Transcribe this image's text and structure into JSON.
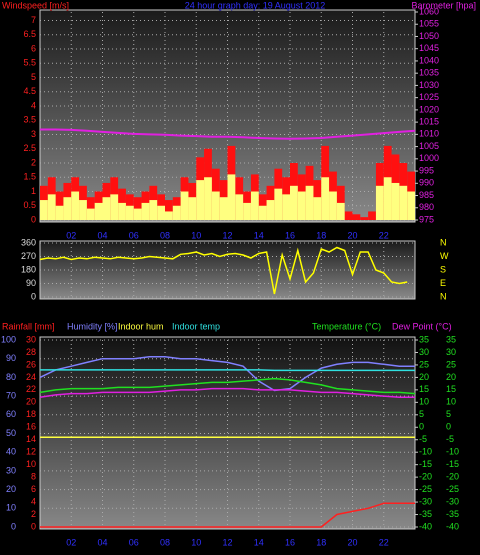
{
  "chart_data": [
    {
      "type": "bar",
      "title": "24 hour graph day: 19 August 2012",
      "ylabel": "Windspeed [m/s]",
      "y2label": "Barometer [hpa]",
      "xlim": [
        0,
        24
      ],
      "ylim": [
        0,
        7.3
      ],
      "y2lim": [
        975,
        1060
      ],
      "grid": true,
      "x": [
        0,
        0.5,
        1,
        1.5,
        2,
        2.5,
        3,
        3.5,
        4,
        4.5,
        5,
        5.5,
        6,
        6.5,
        7,
        7.5,
        8,
        8.5,
        9,
        9.5,
        10,
        10.5,
        11,
        11.5,
        12,
        12.5,
        13,
        13.5,
        14,
        14.5,
        15,
        15.5,
        16,
        16.5,
        17,
        17.5,
        18,
        18.5,
        19,
        19.5,
        20,
        20.5,
        21,
        21.5,
        22,
        22.5,
        23,
        23.5
      ],
      "xticks": [
        {
          "value": 2,
          "label": "02"
        },
        {
          "value": 4,
          "label": "04"
        },
        {
          "value": 6,
          "label": "06"
        },
        {
          "value": 8,
          "label": "08"
        },
        10,
        12,
        14,
        16,
        18,
        20,
        22
      ],
      "yticks": [
        0,
        0.5,
        1,
        1.5,
        2,
        2.5,
        3,
        3.5,
        4,
        4.5,
        5,
        5.5,
        6,
        6.5,
        7
      ],
      "y2ticks": [
        975,
        980,
        985,
        990,
        995,
        1000,
        1005,
        1010,
        1015,
        1020,
        1025,
        1030,
        1035,
        1040,
        1045,
        1050,
        1055,
        1060
      ],
      "series": [
        {
          "color": "#ff1010",
          "values": [
            1.2,
            1.5,
            1.0,
            1.3,
            1.5,
            1.2,
            0.8,
            1.0,
            1.3,
            1.5,
            1.1,
            0.9,
            0.8,
            1.0,
            1.2,
            0.9,
            0.7,
            0.8,
            1.5,
            1.3,
            2.2,
            2.5,
            1.8,
            1.4,
            2.6,
            1.5,
            1.0,
            1.6,
            0.9,
            1.2,
            1.8,
            1.5,
            2.0,
            1.6,
            1.9,
            1.4,
            2.6,
            1.7,
            1.2,
            0.3,
            0.2,
            0.1,
            0.3,
            2.0,
            2.6,
            2.3,
            2.0,
            1.7
          ]
        },
        {
          "color": "#ffff80",
          "values": [
            0.7,
            0.9,
            0.5,
            0.8,
            1.0,
            0.7,
            0.4,
            0.6,
            0.8,
            0.9,
            0.6,
            0.5,
            0.4,
            0.6,
            0.7,
            0.5,
            0.3,
            0.5,
            1.0,
            0.8,
            1.4,
            1.5,
            1.0,
            0.8,
            1.6,
            0.9,
            0.6,
            1.0,
            0.5,
            0.7,
            1.1,
            0.9,
            1.2,
            1.0,
            1.2,
            0.8,
            1.5,
            1.0,
            0.6,
            0,
            0,
            0,
            0,
            1.2,
            1.5,
            1.3,
            1.2,
            1.0
          ]
        },
        {
          "type": "line",
          "axis": "y2",
          "color": "#e020e0",
          "x": [
            0,
            1,
            2,
            3,
            4,
            5,
            6,
            7,
            8,
            9,
            10,
            11,
            12,
            13,
            14,
            15,
            16,
            17,
            18,
            19,
            20,
            21,
            22,
            23,
            24
          ],
          "values": [
            1012,
            1012,
            1011.8,
            1011.5,
            1011,
            1010.6,
            1010.2,
            1010,
            1009.8,
            1009.5,
            1009.3,
            1009,
            1009,
            1008.8,
            1008.5,
            1008.3,
            1008.2,
            1008.3,
            1008.5,
            1009,
            1009.5,
            1010,
            1010.5,
            1011,
            1011.5
          ]
        }
      ]
    },
    {
      "type": "line",
      "xlim": [
        0,
        24
      ],
      "ylim": [
        0,
        360
      ],
      "grid": true,
      "yticks": [
        0,
        90,
        180,
        270,
        360
      ],
      "compass_labels": [
        "N",
        "W",
        "S",
        "E",
        "N"
      ],
      "x": [
        0,
        0.5,
        1,
        1.5,
        2,
        2.5,
        3,
        3.5,
        4,
        4.5,
        5,
        5.5,
        6,
        6.5,
        7,
        7.5,
        8,
        8.5,
        9,
        9.5,
        10,
        10.5,
        11,
        11.5,
        12,
        12.5,
        13,
        13.5,
        14,
        14.5,
        15,
        15.5,
        16,
        16.5,
        17,
        17.5,
        18,
        18.5,
        19,
        19.5,
        20,
        20.5,
        21,
        21.5,
        22,
        22.5,
        23,
        23.5
      ],
      "series": [
        {
          "color": "#ffff00",
          "values": [
            250,
            260,
            255,
            265,
            250,
            260,
            255,
            265,
            260,
            255,
            265,
            260,
            255,
            260,
            270,
            265,
            260,
            255,
            285,
            290,
            300,
            280,
            290,
            270,
            285,
            290,
            280,
            260,
            290,
            300,
            20,
            280,
            120,
            310,
            100,
            160,
            320,
            300,
            330,
            310,
            150,
            300,
            300,
            180,
            160,
            100,
            90,
            100
          ]
        }
      ]
    },
    {
      "type": "line",
      "xlim": [
        0,
        24
      ],
      "ylim": [
        0,
        100
      ],
      "rain_lim": [
        0,
        30
      ],
      "y2lim": [
        -40,
        35
      ],
      "grid": true,
      "x": [
        0,
        1,
        2,
        3,
        4,
        5,
        6,
        7,
        8,
        9,
        10,
        11,
        12,
        13,
        14,
        15,
        16,
        17,
        18,
        19,
        20,
        21,
        22,
        23,
        24
      ],
      "xticks": [
        {
          "value": 2,
          "label": "02"
        },
        {
          "value": 4,
          "label": "04"
        },
        {
          "value": 6,
          "label": "06"
        },
        {
          "value": 8,
          "label": "08"
        },
        10,
        12,
        14,
        16,
        18,
        20,
        22
      ],
      "yticks": [
        0,
        10,
        20,
        30,
        40,
        50,
        60,
        70,
        80,
        90,
        100
      ],
      "rain_ticks": [
        0,
        2,
        4,
        6,
        8,
        10,
        12,
        14,
        16,
        18,
        20,
        22,
        24,
        26,
        28,
        30
      ],
      "y2ticks": [
        -40,
        -35,
        -30,
        -25,
        -20,
        -15,
        -10,
        -5,
        0,
        5,
        10,
        15,
        20,
        25,
        30,
        35
      ],
      "dew_ticks": [
        -40,
        -35,
        -30,
        -25,
        -20,
        -15,
        -10,
        -5,
        0,
        5,
        10,
        15,
        20,
        25,
        30,
        35
      ],
      "series": [
        {
          "name": "Rainfall [mm]",
          "axis": "rain",
          "color": "#ff2020",
          "values": [
            0,
            0,
            0,
            0,
            0,
            0,
            0,
            0,
            0,
            0,
            0,
            0,
            0,
            0,
            0,
            0,
            0,
            0,
            0,
            2.0,
            2.5,
            3.0,
            3.8,
            3.8,
            3.8
          ]
        },
        {
          "name": "Humidity [%]",
          "color": "#8080ff",
          "values": [
            80,
            84,
            86,
            88,
            90,
            90,
            90,
            91,
            91,
            90,
            90,
            89,
            88,
            86,
            78,
            73,
            74,
            80,
            85,
            87,
            88,
            88,
            87,
            86,
            86
          ]
        },
        {
          "name": "Indoor hum",
          "color": "#ffff40",
          "values": [
            48,
            48,
            48,
            48,
            48,
            48,
            48,
            48,
            48,
            48,
            48,
            48,
            48,
            48,
            48,
            48,
            48,
            48,
            48,
            48,
            48,
            48,
            48,
            48,
            48
          ]
        },
        {
          "name": "Indoor temp",
          "axis": "y2",
          "color": "#30e0e0",
          "values": [
            23,
            23,
            23,
            23,
            23,
            23,
            23,
            23,
            23,
            23,
            23,
            23,
            23,
            23,
            23,
            22.8,
            22.8,
            22.8,
            22.8,
            22.8,
            22.8,
            22.8,
            22.8,
            22.8,
            22.8
          ]
        },
        {
          "name": "Temperature (°C)",
          "axis": "y2",
          "color": "#20e020",
          "values": [
            14,
            15,
            15.5,
            15.5,
            15.5,
            16,
            16,
            16,
            16.5,
            17,
            17.5,
            18,
            18,
            18.5,
            19,
            19.5,
            19,
            18,
            17,
            15.5,
            15,
            14.5,
            14,
            14,
            13.5
          ]
        },
        {
          "name": "Dew Point (°C)",
          "axis": "y2",
          "color": "#e020e0",
          "values": [
            12,
            13,
            13.5,
            13.5,
            14,
            14,
            14,
            14,
            14.5,
            15,
            15,
            15.5,
            15.5,
            15.5,
            15,
            15,
            15,
            14.5,
            14,
            14,
            13.5,
            13,
            12.5,
            12,
            12
          ]
        }
      ]
    }
  ]
}
